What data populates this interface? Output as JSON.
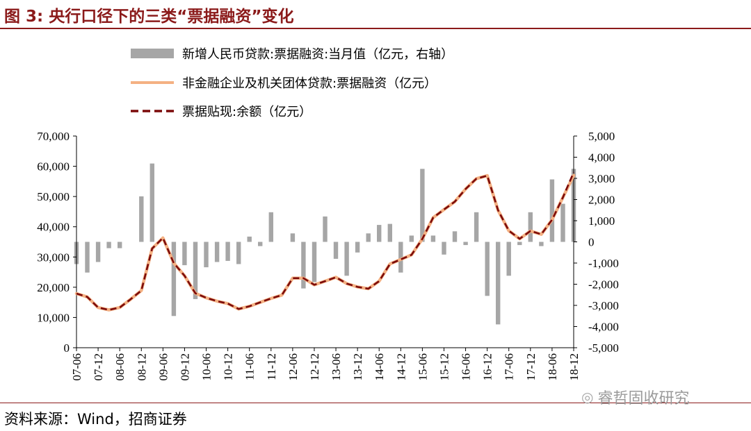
{
  "figure": {
    "title": "图 3:  央行口径下的三类“票据融资”变化",
    "source": "资料来源：Wind，招商证券",
    "watermark": "睿哲固收研究",
    "watermark_icon": "wechat-icon"
  },
  "chart_data": {
    "type": "bar+line",
    "title": "图 3:  央行口径下的三类“票据融资”变化",
    "xlabel": "",
    "ylabel": "",
    "categories": [
      "07-06",
      "07-12",
      "08-06",
      "08-12",
      "09-06",
      "09-12",
      "10-06",
      "10-12",
      "11-06",
      "11-12",
      "12-06",
      "12-12",
      "13-06",
      "13-12",
      "14-06",
      "14-12",
      "15-06",
      "15-12",
      "16-06",
      "16-12",
      "17-06",
      "17-12",
      "18-06",
      "18-12"
    ],
    "y_left_lim": [
      0,
      70000
    ],
    "y_left_ticks": [
      "0",
      "10,000",
      "20,000",
      "30,000",
      "40,000",
      "50,000",
      "60,000",
      "70,000"
    ],
    "y_right_lim": [
      -5000,
      5000
    ],
    "y_right_ticks": [
      "-5,000",
      "-4,000",
      "-3,000",
      "-2,000",
      "-1,000",
      "0",
      "1,000",
      "2,000",
      "3,000",
      "4,000",
      "5,000"
    ],
    "legend_position": "top",
    "colors": {
      "bar": "#a6a6a6",
      "line": "#f4b183",
      "dash": "#7b0a0a",
      "title": "#8b1a1a"
    },
    "series": [
      {
        "name": "新增人民币贷款:票据融资:当月值（亿元，右轴）",
        "kind": "bar",
        "axis": "right",
        "x": [
          "07-06",
          "07-09",
          "07-12",
          "08-03",
          "08-06",
          "08-12",
          "09-03",
          "09-09",
          "09-12",
          "10-03",
          "10-06",
          "10-09",
          "10-12",
          "11-03",
          "11-06",
          "11-09",
          "11-12",
          "12-06",
          "12-09",
          "12-12",
          "13-03",
          "13-06",
          "13-09",
          "13-12",
          "14-03",
          "14-06",
          "14-09",
          "14-12",
          "15-03",
          "15-06",
          "15-09",
          "15-12",
          "16-03",
          "16-06",
          "16-09",
          "16-12",
          "17-03",
          "17-06",
          "17-09",
          "17-12",
          "18-03",
          "18-06",
          "18-09",
          "18-12"
        ],
        "values": [
          -1050,
          -1450,
          -950,
          -300,
          -300,
          2150,
          3700,
          -3500,
          -1100,
          -2700,
          -1200,
          -950,
          -900,
          -1050,
          250,
          -200,
          1400,
          400,
          -2200,
          -1900,
          1200,
          -800,
          -1600,
          -500,
          400,
          800,
          850,
          -1450,
          300,
          3450,
          300,
          -600,
          500,
          -150,
          1400,
          -2550,
          -3900,
          -1600,
          -150,
          1400,
          -200,
          2950,
          1800,
          3450
        ]
      },
      {
        "name": "非金融企业及机关团体贷款:票据融资（亿元）",
        "kind": "line",
        "axis": "left",
        "x": [
          "07-06",
          "07-09",
          "07-12",
          "08-03",
          "08-06",
          "08-09",
          "08-12",
          "09-03",
          "09-06",
          "09-09",
          "09-12",
          "10-03",
          "10-06",
          "10-09",
          "10-12",
          "11-03",
          "11-06",
          "11-09",
          "11-12",
          "12-03",
          "12-06",
          "12-09",
          "12-12",
          "13-03",
          "13-06",
          "13-09",
          "13-12",
          "14-03",
          "14-06",
          "14-09",
          "14-12",
          "15-03",
          "15-06",
          "15-09",
          "15-12",
          "16-03",
          "16-06",
          "16-09",
          "16-12",
          "17-03",
          "17-06",
          "17-09",
          "17-12",
          "18-03",
          "18-06",
          "18-09",
          "18-12"
        ],
        "values": [
          17900,
          16800,
          13300,
          12500,
          13300,
          16000,
          18900,
          32800,
          36300,
          28000,
          23800,
          18000,
          16500,
          15400,
          14600,
          12800,
          13700,
          15000,
          16300,
          17400,
          23000,
          23000,
          20800,
          22000,
          23300,
          21200,
          20100,
          19500,
          22000,
          27700,
          29200,
          30700,
          36000,
          43000,
          45700,
          48300,
          52500,
          55900,
          56900,
          45500,
          38700,
          36000,
          38600,
          37500,
          42300,
          49700,
          57000
        ]
      },
      {
        "name": "票据贴现:余额（亿元）",
        "kind": "dashed-line",
        "axis": "left",
        "x": [
          "07-06",
          "07-09",
          "07-12",
          "08-03",
          "08-06",
          "08-09",
          "08-12",
          "09-03",
          "09-06",
          "09-09",
          "09-12",
          "10-03",
          "10-06",
          "10-09",
          "10-12",
          "11-03",
          "11-06",
          "11-09",
          "11-12",
          "12-03",
          "12-06",
          "12-09",
          "12-12",
          "13-03",
          "13-06",
          "13-09",
          "13-12",
          "14-03",
          "14-06",
          "14-09",
          "14-12",
          "15-03",
          "15-06",
          "15-09",
          "15-12",
          "16-03",
          "16-06",
          "16-09",
          "16-12",
          "17-03",
          "17-06",
          "17-09",
          "17-12",
          "18-03",
          "18-06",
          "18-09",
          "18-12"
        ],
        "values": [
          17900,
          16800,
          13300,
          12500,
          13300,
          16000,
          18900,
          32800,
          36300,
          28000,
          23800,
          18000,
          16500,
          15400,
          14600,
          12800,
          13700,
          15000,
          16300,
          17400,
          23000,
          23000,
          20800,
          22000,
          23300,
          21200,
          20100,
          19500,
          22000,
          27700,
          29200,
          30700,
          36000,
          43000,
          45700,
          48300,
          52500,
          55900,
          56900,
          45500,
          38700,
          36000,
          38600,
          37500,
          42300,
          49700,
          58000
        ]
      }
    ]
  }
}
